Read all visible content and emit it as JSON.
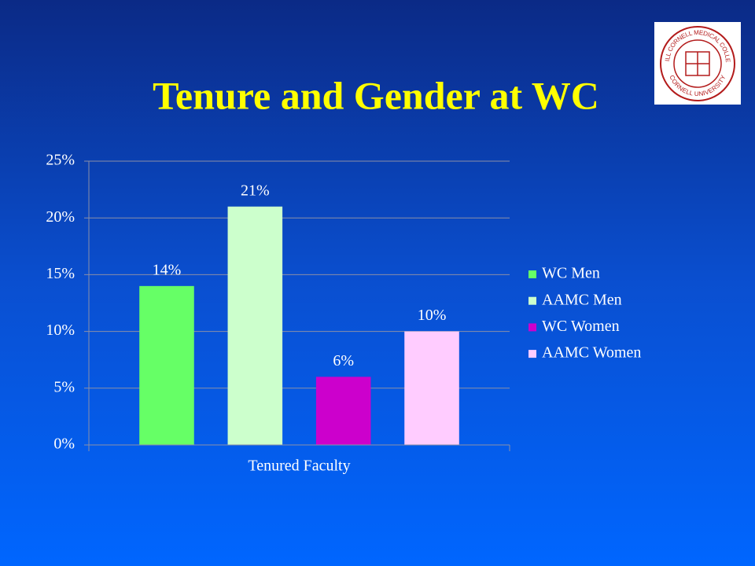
{
  "chart_data": {
    "type": "bar",
    "title": "Tenure and Gender at WC",
    "categories": [
      "Tenured Faculty"
    ],
    "series": [
      {
        "name": "WC Men",
        "color": "#66ff66",
        "values": [
          14
        ],
        "value_labels": [
          "14%"
        ]
      },
      {
        "name": "AAMC Men",
        "color": "#ccffcc",
        "values": [
          21
        ],
        "value_labels": [
          "21%"
        ]
      },
      {
        "name": "WC Women",
        "color": "#cc00cc",
        "values": [
          6
        ],
        "value_labels": [
          "6%"
        ]
      },
      {
        "name": "AAMC Women",
        "color": "#ffccff",
        "values": [
          10
        ],
        "value_labels": [
          "10%"
        ]
      }
    ],
    "ylim": [
      0,
      25
    ],
    "yticks": [
      {
        "value": 0,
        "label": "0%"
      },
      {
        "value": 5,
        "label": "5%"
      },
      {
        "value": 10,
        "label": "10%"
      },
      {
        "value": 15,
        "label": "15%"
      },
      {
        "value": 20,
        "label": "20%"
      },
      {
        "value": 25,
        "label": "25%"
      }
    ],
    "grid": true,
    "legend": "right"
  },
  "logo": {
    "top": "WEILL CORNELL MEDICAL COLLEGE",
    "bottom": "CORNELL UNIVERSITY"
  }
}
